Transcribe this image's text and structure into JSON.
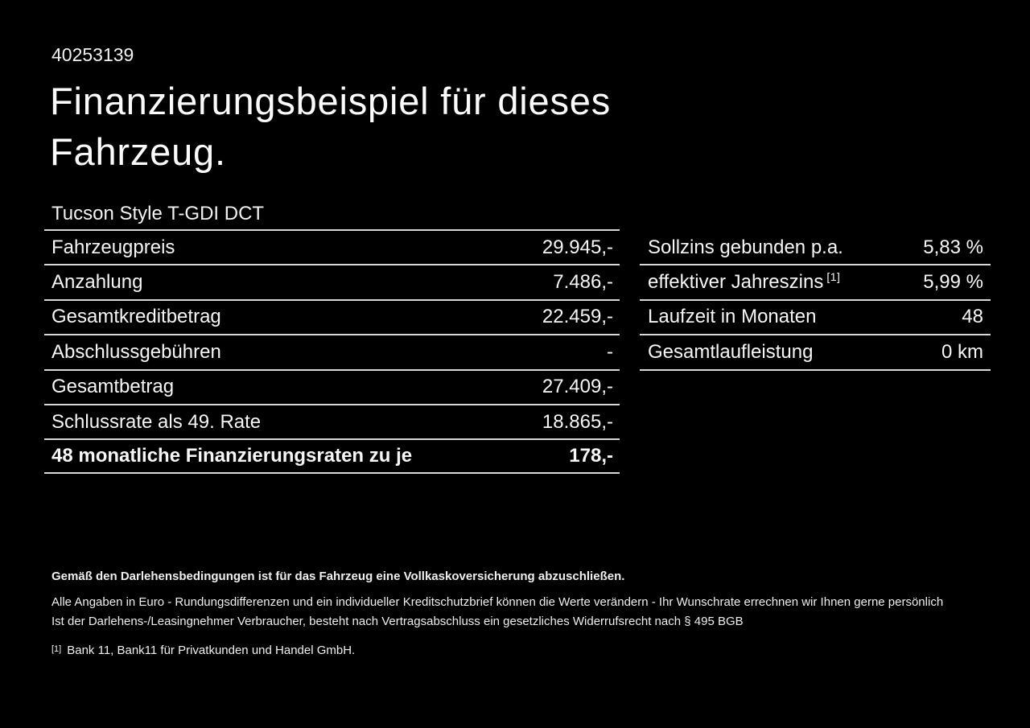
{
  "page": {
    "background_color": "#000000",
    "text_color": "#f6f6f6",
    "divider_color": "#d8d8d8"
  },
  "header": {
    "vehicle_id": "40253139",
    "title": "Finanzierungsbeispiel für dieses Fahrzeug.",
    "model": "Tucson Style T-GDI DCT"
  },
  "finance_table": {
    "rows": [
      {
        "label": "Fahrzeugpreis",
        "value": "29.945,-"
      },
      {
        "label": "Anzahlung",
        "value": "7.486,-"
      },
      {
        "label": "Gesamtkreditbetrag",
        "value": "22.459,-"
      },
      {
        "label": "Abschlussgebühren",
        "value": "-"
      },
      {
        "label": "Gesamtbetrag",
        "value": "27.409,-"
      },
      {
        "label": "Schlussrate als 49. Rate",
        "value": "18.865,-"
      },
      {
        "label": "48 monatliche Finanzierungsraten zu je",
        "value": "178,-"
      }
    ]
  },
  "conditions_table": {
    "rows": [
      {
        "label": "Sollzins gebunden p.a.",
        "footnote": "",
        "value": "5,83 %"
      },
      {
        "label": "effektiver Jahreszins",
        "footnote": "[1]",
        "value": "5,99 %"
      },
      {
        "label": "Laufzeit in Monaten",
        "footnote": "",
        "value": "48"
      },
      {
        "label": "Gesamtlaufleistung",
        "footnote": "",
        "value": "0 km"
      }
    ]
  },
  "footer": {
    "bold_note": "Gemäß den Darlehensbedingungen ist für das Fahrzeug eine Vollkaskoversicherung abzuschließen.",
    "note_line1": "Alle Angaben in Euro - Rundungsdifferenzen und ein individueller Kreditschutzbrief können die Werte verändern - Ihr Wunschrate errechnen wir Ihnen gerne persönlich",
    "note_line2": "Ist der Darlehens-/Leasingnehmer Verbraucher, besteht nach Vertragsabschluss ein gesetzliches Widerrufsrecht nach § 495 BGB",
    "footnote_marker": "[1]",
    "footnote_text": "Bank 11, Bank11 für Privatkunden und Handel GmbH."
  }
}
